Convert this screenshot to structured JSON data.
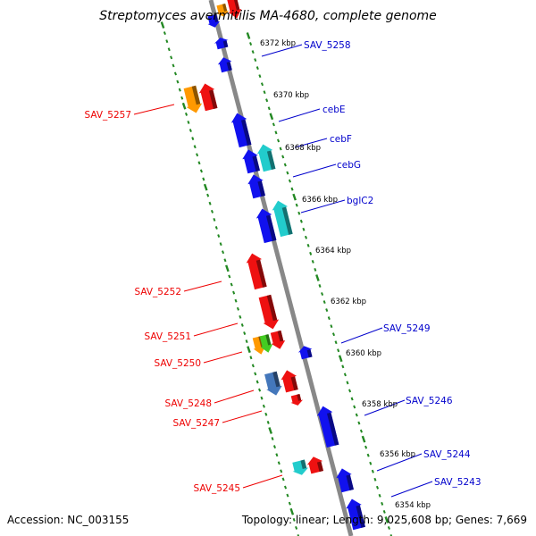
{
  "title": "Streptomyces avermitilis MA-4680, complete genome",
  "footer": {
    "accession": "Accession: NC_003155",
    "stats": "Topology: linear; Length: 9,025,608 bp; Genes: 7,669"
  },
  "colors": {
    "backbone": "#888888",
    "tick": "#228822",
    "forward_label": "#0000cc",
    "reverse_label": "#ee0000",
    "blue_gene": "#1111ee",
    "red_gene": "#ee1111",
    "orange_gene": "#ff9900",
    "cyan_gene": "#22cccc",
    "green_gene": "#44cc22",
    "steel_gene": "#4477bb"
  },
  "kbp_labels": [
    "6372 kbp",
    "6370 kbp",
    "6368 kbp",
    "6366 kbp",
    "6364 kbp",
    "6362 kbp",
    "6360 kbp",
    "6358 kbp",
    "6356 kbp",
    "6354 kbp"
  ],
  "forward_genes": [
    "SAV_5258",
    "cebE",
    "cebF",
    "cebG",
    "bglC2",
    "SAV_5249",
    "SAV_5246",
    "SAV_5244",
    "SAV_5243"
  ],
  "reverse_genes": [
    "SAV_5257",
    "SAV_5252",
    "SAV_5251",
    "SAV_5250",
    "SAV_5248",
    "SAV_5247",
    "SAV_5245"
  ]
}
